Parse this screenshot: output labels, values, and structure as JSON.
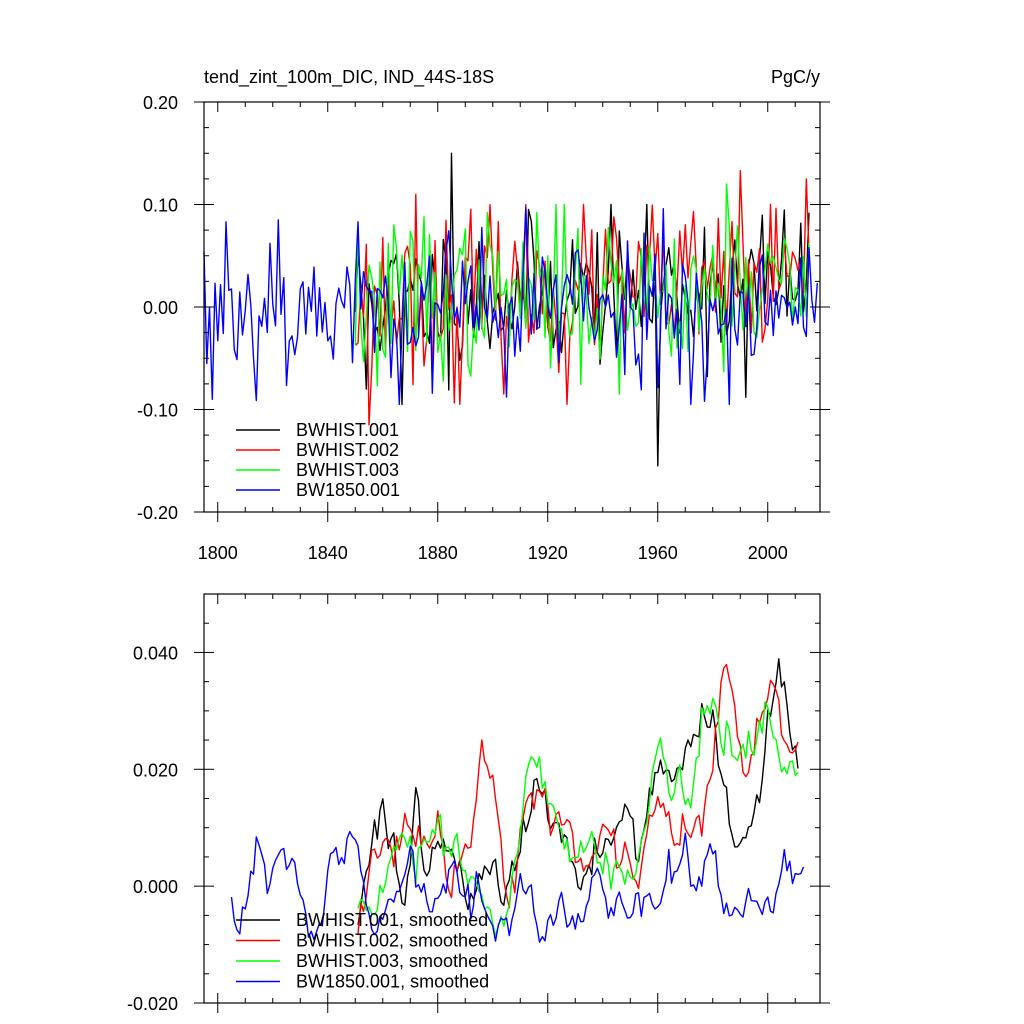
{
  "page": {
    "title_left": "tend_zint_100m_DIC, IND_44S-18S",
    "title_right": "PgC/y"
  },
  "chart_data": [
    {
      "type": "line",
      "title": "tend_zint_100m_DIC, IND_44S-18S",
      "units": "PgC/y",
      "xlim": [
        1795,
        2019
      ],
      "ylim": [
        -0.2,
        0.2
      ],
      "xticks": [
        1800,
        1840,
        1880,
        1920,
        1960,
        2000
      ],
      "xtick_labels": [
        "1800",
        "1840",
        "1880",
        "1920",
        "1960",
        "2000"
      ],
      "yticks": [
        -0.2,
        -0.1,
        0.0,
        0.1,
        0.2
      ],
      "ytick_labels": [
        "-0.20",
        "-0.10",
        "0.00",
        "0.10",
        "0.20"
      ],
      "legend": "lower-left",
      "series": [
        {
          "name": "BWHIST.001",
          "color": "#000000",
          "start": 1850,
          "end": 2015,
          "mean": 0.005,
          "amp": 0.042,
          "trend": 0.00012,
          "seed": 11,
          "spikes": [
            [
              1854,
              -0.08
            ],
            [
              1867,
              -0.095
            ],
            [
              1885,
              0.15
            ],
            [
              1960,
              -0.155
            ],
            [
              1992,
              -0.088
            ],
            [
              2015,
              0.092
            ]
          ]
        },
        {
          "name": "BWHIST.002",
          "color": "#ff0000",
          "start": 1850,
          "end": 2015,
          "mean": 0.005,
          "amp": 0.045,
          "trend": 0.00014,
          "seed": 23,
          "spikes": [
            [
              1855,
              -0.115
            ],
            [
              1872,
              0.11
            ],
            [
              1888,
              -0.095
            ],
            [
              1927,
              -0.095
            ],
            [
              1990,
              0.133
            ],
            [
              2014,
              0.125
            ]
          ]
        },
        {
          "name": "BWHIST.003",
          "color": "#00ff00",
          "start": 1850,
          "end": 2015,
          "mean": 0.005,
          "amp": 0.045,
          "trend": 0.00012,
          "seed": 37,
          "spikes": [
            [
              1858,
              -0.077
            ],
            [
              1875,
              0.088
            ],
            [
              1946,
              -0.085
            ],
            [
              1985,
              0.12
            ]
          ]
        },
        {
          "name": "BW1850.001",
          "color": "#0000ff",
          "start": 1795,
          "end": 2018,
          "mean": 0.0,
          "amp": 0.045,
          "trend": 0.0,
          "seed": 53,
          "spikes": [
            [
              1798,
              -0.09
            ],
            [
              1803,
              0.083
            ],
            [
              1822,
              0.085
            ],
            [
              1912,
              0.097
            ],
            [
              1977,
              -0.092
            ]
          ]
        }
      ]
    },
    {
      "type": "line",
      "xlim": [
        1795,
        2019
      ],
      "ylim": [
        -0.02,
        0.05
      ],
      "xticks": [
        1800,
        1840,
        1880,
        1920,
        1960,
        2000
      ],
      "yticks": [
        -0.02,
        0.0,
        0.02,
        0.04
      ],
      "ytick_labels": [
        "-0.020",
        "0.000",
        "0.020",
        "0.040"
      ],
      "legend": "lower-left",
      "series": [
        {
          "name": "BWHIST.001, smoothed",
          "color": "#000000",
          "start": 1851,
          "end": 2011,
          "seed": 101,
          "anchors": [
            [
              1851,
              -0.004
            ],
            [
              1856,
              0.006
            ],
            [
              1860,
              0.014
            ],
            [
              1864,
              0.008
            ],
            [
              1868,
              -0.004
            ],
            [
              1872,
              0.012
            ],
            [
              1876,
              0.0
            ],
            [
              1880,
              0.008
            ],
            [
              1884,
              0.004
            ],
            [
              1888,
              0.002
            ],
            [
              1892,
              -0.004
            ],
            [
              1896,
              0.002
            ],
            [
              1900,
              0.004
            ],
            [
              1904,
              -0.002
            ],
            [
              1908,
              0.004
            ],
            [
              1912,
              0.012
            ],
            [
              1916,
              0.018
            ],
            [
              1920,
              0.014
            ],
            [
              1924,
              0.012
            ],
            [
              1928,
              0.004
            ],
            [
              1932,
              0.0
            ],
            [
              1936,
              0.004
            ],
            [
              1940,
              0.008
            ],
            [
              1944,
              0.008
            ],
            [
              1948,
              0.014
            ],
            [
              1952,
              0.008
            ],
            [
              1956,
              0.012
            ],
            [
              1960,
              0.018
            ],
            [
              1964,
              0.02
            ],
            [
              1968,
              0.022
            ],
            [
              1972,
              0.022
            ],
            [
              1976,
              0.03
            ],
            [
              1980,
              0.028
            ],
            [
              1984,
              0.018
            ],
            [
              1988,
              0.006
            ],
            [
              1992,
              0.01
            ],
            [
              1996,
              0.012
            ],
            [
              2000,
              0.03
            ],
            [
              2004,
              0.036
            ],
            [
              2008,
              0.026
            ],
            [
              2011,
              0.022
            ]
          ]
        },
        {
          "name": "BWHIST.002, smoothed",
          "color": "#ff0000",
          "start": 1851,
          "end": 2011,
          "seed": 202,
          "anchors": [
            [
              1851,
              -0.006
            ],
            [
              1856,
              0.004
            ],
            [
              1860,
              0.008
            ],
            [
              1864,
              0.008
            ],
            [
              1868,
              0.01
            ],
            [
              1872,
              0.006
            ],
            [
              1876,
              0.006
            ],
            [
              1880,
              0.014
            ],
            [
              1884,
              -0.004
            ],
            [
              1888,
              0.004
            ],
            [
              1892,
              0.008
            ],
            [
              1896,
              0.024
            ],
            [
              1900,
              0.018
            ],
            [
              1904,
              0.004
            ],
            [
              1908,
              0.0
            ],
            [
              1912,
              0.012
            ],
            [
              1916,
              0.016
            ],
            [
              1920,
              0.014
            ],
            [
              1924,
              0.01
            ],
            [
              1928,
              0.008
            ],
            [
              1932,
              0.004
            ],
            [
              1936,
              0.006
            ],
            [
              1940,
              0.008
            ],
            [
              1944,
              0.004
            ],
            [
              1948,
              0.004
            ],
            [
              1952,
              0.002
            ],
            [
              1956,
              0.008
            ],
            [
              1960,
              0.016
            ],
            [
              1964,
              0.012
            ],
            [
              1968,
              0.008
            ],
            [
              1972,
              0.01
            ],
            [
              1976,
              0.01
            ],
            [
              1980,
              0.022
            ],
            [
              1984,
              0.036
            ],
            [
              1988,
              0.03
            ],
            [
              1992,
              0.022
            ],
            [
              1996,
              0.024
            ],
            [
              2000,
              0.032
            ],
            [
              2004,
              0.03
            ],
            [
              2008,
              0.022
            ],
            [
              2011,
              0.024
            ]
          ]
        },
        {
          "name": "BWHIST.003, smoothed",
          "color": "#00ff00",
          "start": 1851,
          "end": 2011,
          "seed": 303,
          "anchors": [
            [
              1851,
              -0.004
            ],
            [
              1856,
              -0.006
            ],
            [
              1860,
              -0.002
            ],
            [
              1864,
              0.004
            ],
            [
              1868,
              0.006
            ],
            [
              1872,
              0.004
            ],
            [
              1876,
              0.008
            ],
            [
              1880,
              0.01
            ],
            [
              1884,
              0.008
            ],
            [
              1888,
              0.004
            ],
            [
              1892,
              0.0
            ],
            [
              1896,
              -0.002
            ],
            [
              1900,
              -0.006
            ],
            [
              1904,
              -0.008
            ],
            [
              1908,
              0.004
            ],
            [
              1912,
              0.016
            ],
            [
              1916,
              0.022
            ],
            [
              1920,
              0.016
            ],
            [
              1924,
              0.012
            ],
            [
              1928,
              0.006
            ],
            [
              1932,
              0.004
            ],
            [
              1936,
              0.008
            ],
            [
              1940,
              0.004
            ],
            [
              1944,
              0.002
            ],
            [
              1948,
              0.0
            ],
            [
              1952,
              0.004
            ],
            [
              1956,
              0.012
            ],
            [
              1960,
              0.024
            ],
            [
              1964,
              0.018
            ],
            [
              1968,
              0.016
            ],
            [
              1972,
              0.016
            ],
            [
              1976,
              0.03
            ],
            [
              1980,
              0.032
            ],
            [
              1984,
              0.024
            ],
            [
              1988,
              0.024
            ],
            [
              1992,
              0.022
            ],
            [
              1996,
              0.026
            ],
            [
              2000,
              0.03
            ],
            [
              2004,
              0.024
            ],
            [
              2008,
              0.018
            ],
            [
              2011,
              0.018
            ]
          ]
        },
        {
          "name": "BW1850.001, smoothed",
          "color": "#0000ff",
          "start": 1805,
          "end": 2013,
          "seed": 404,
          "anchors": [
            [
              1805,
              -0.004
            ],
            [
              1808,
              -0.008
            ],
            [
              1811,
              0.002
            ],
            [
              1814,
              0.005
            ],
            [
              1818,
              0.002
            ],
            [
              1822,
              0.008
            ],
            [
              1826,
              0.006
            ],
            [
              1830,
              0.0
            ],
            [
              1834,
              -0.008
            ],
            [
              1838,
              -0.006
            ],
            [
              1842,
              0.006
            ],
            [
              1846,
              0.008
            ],
            [
              1850,
              0.01
            ],
            [
              1854,
              -0.002
            ],
            [
              1858,
              -0.01
            ],
            [
              1862,
              -0.006
            ],
            [
              1866,
              0.002
            ],
            [
              1870,
              0.004
            ],
            [
              1874,
              0.0
            ],
            [
              1878,
              -0.004
            ],
            [
              1882,
              -0.002
            ],
            [
              1886,
              0.002
            ],
            [
              1890,
              -0.004
            ],
            [
              1894,
              0.0
            ],
            [
              1898,
              -0.006
            ],
            [
              1902,
              -0.004
            ],
            [
              1906,
              -0.008
            ],
            [
              1910,
              0.0
            ],
            [
              1914,
              -0.004
            ],
            [
              1918,
              -0.008
            ],
            [
              1922,
              -0.006
            ],
            [
              1926,
              -0.004
            ],
            [
              1930,
              -0.008
            ],
            [
              1934,
              -0.002
            ],
            [
              1938,
              0.002
            ],
            [
              1942,
              -0.004
            ],
            [
              1946,
              0.0
            ],
            [
              1950,
              -0.004
            ],
            [
              1954,
              0.0
            ],
            [
              1958,
              -0.002
            ],
            [
              1962,
              -0.002
            ],
            [
              1966,
              0.0
            ],
            [
              1970,
              0.004
            ],
            [
              1974,
              -0.002
            ],
            [
              1978,
              0.004
            ],
            [
              1982,
              0.0
            ],
            [
              1986,
              -0.002
            ],
            [
              1990,
              -0.004
            ],
            [
              1994,
              -0.002
            ],
            [
              1998,
              -0.006
            ],
            [
              2002,
              -0.004
            ],
            [
              2006,
              0.002
            ],
            [
              2010,
              0.002
            ],
            [
              2013,
              0.004
            ]
          ]
        }
      ]
    }
  ]
}
